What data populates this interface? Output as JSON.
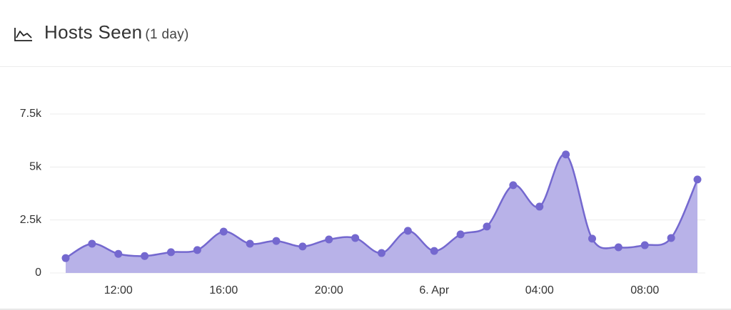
{
  "chart_data": {
    "type": "area",
    "title": "Hosts Seen",
    "subtitle": "(1 day)",
    "categories": [
      null,
      null,
      "12:00",
      null,
      null,
      null,
      "16:00",
      null,
      null,
      null,
      "20:00",
      null,
      null,
      null,
      "6. Apr",
      null,
      null,
      null,
      "04:00",
      null,
      null,
      null,
      "08:00",
      null,
      null
    ],
    "series": [
      {
        "name": "Hosts Seen",
        "color": "#7468cf",
        "fill": "#b8b2e8",
        "values": [
          700,
          1380,
          900,
          800,
          980,
          1080,
          1950,
          1380,
          1510,
          1250,
          1580,
          1650,
          940,
          1990,
          1040,
          1820,
          2190,
          4140,
          3130,
          5590,
          1620,
          1210,
          1310,
          1650,
          4410
        ]
      }
    ],
    "ylim": [
      0,
      7500
    ],
    "yticks": [
      0,
      {
        "value": 2500,
        "label": "2.5k"
      },
      {
        "value": 5000,
        "label": "5k"
      },
      {
        "value": 7500,
        "label": "7.5k"
      }
    ],
    "grid": true
  }
}
